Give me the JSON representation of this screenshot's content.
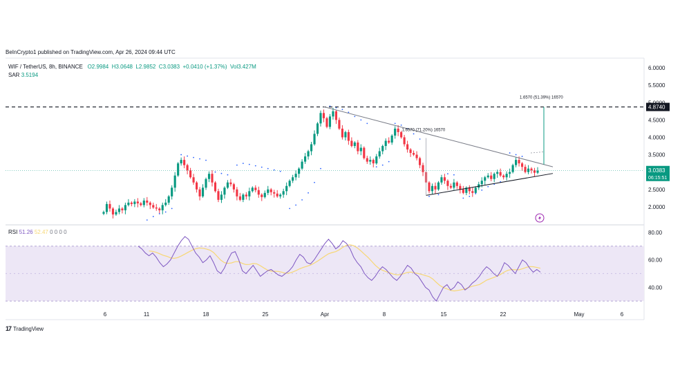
{
  "header": {
    "attribution": "BeInCrypto1 published on TradingView.com, Apr 26, 2024 09:44 UTC"
  },
  "legend": {
    "symbol": "WIF / TetherUS, 8h, BINANCE",
    "open": "O2.9984",
    "high": "H3.0648",
    "low": "L2.9852",
    "close": "C3.0383",
    "change": "+0.0410 (+1.37%)",
    "volume": "Vol3.427M",
    "sar_label": "SAR",
    "sar_value": "3.5194",
    "rsi_label": "RSI",
    "rsi_value": "51.26",
    "rsi_ma_value": "52.47",
    "rsi_extra": "0 0 0 0"
  },
  "footer": {
    "logo_glyph": "17",
    "brand": "TradingView"
  },
  "colors": {
    "up": "#089981",
    "down": "#f23645",
    "rsi_line": "#7e57c2",
    "rsi_ma": "#f7d774",
    "rsi_band": "#ede7f6",
    "trendline": "#787b86",
    "sar": "#2962ff"
  },
  "chart_data": [
    {
      "type": "candlestick",
      "price_axis_ticks": [
        "6.0000",
        "5.5000",
        "5.0000",
        "4.5000",
        "4.0000",
        "3.5000",
        "2.5000",
        "2.0000"
      ],
      "ylim": [
        1.5,
        6.2
      ],
      "resistance_level": 4.874,
      "resistance_label": "4.8740",
      "current_price_label": "3.0383",
      "countdown_label": "06:15:51",
      "measure_labels": [
        {
          "text": "1.6570 (71.20%) 16570",
          "from": 2.33,
          "to": 3.98
        },
        {
          "text": "1.6570 (51.39%) 16570",
          "from": 3.22,
          "to": 4.874
        }
      ],
      "x_tick_labels": [
        "6",
        "11",
        "18",
        "25",
        "Apr",
        "8",
        "15",
        "22",
        "May",
        "6"
      ],
      "closes": [
        1.85,
        2.08,
        1.95,
        1.78,
        1.85,
        1.95,
        1.9,
        2.05,
        2.12,
        2.08,
        2.15,
        2.1,
        2.05,
        2.18,
        2.12,
        2.05,
        1.98,
        1.95,
        1.9,
        2.05,
        2.12,
        2.3,
        2.55,
        2.9,
        3.25,
        3.35,
        3.2,
        3.05,
        2.85,
        2.7,
        2.5,
        2.3,
        2.55,
        2.8,
        2.95,
        2.7,
        2.45,
        2.2,
        2.35,
        2.55,
        2.7,
        2.65,
        2.5,
        2.3,
        2.2,
        2.35,
        2.3,
        2.45,
        2.55,
        2.48,
        2.35,
        2.28,
        2.4,
        2.5,
        2.42,
        2.38,
        2.3,
        2.35,
        2.45,
        2.6,
        2.75,
        2.85,
        2.95,
        3.1,
        3.3,
        3.45,
        3.6,
        3.8,
        4.1,
        4.4,
        4.7,
        4.55,
        4.3,
        4.6,
        4.75,
        4.5,
        4.25,
        4.0,
        4.15,
        3.9,
        3.75,
        3.85,
        3.6,
        3.7,
        3.4,
        3.3,
        3.35,
        3.25,
        3.45,
        3.6,
        3.75,
        3.9,
        3.85,
        4.05,
        4.25,
        4.15,
        4.0,
        3.8,
        3.65,
        3.55,
        3.5,
        3.4,
        3.2,
        3.0,
        2.7,
        2.45,
        2.6,
        2.5,
        2.7,
        2.85,
        2.75,
        2.6,
        2.55,
        2.7,
        2.6,
        2.5,
        2.4,
        2.55,
        2.45,
        2.4,
        2.55,
        2.65,
        2.75,
        2.85,
        2.9,
        2.8,
        2.95,
        3.0,
        2.9,
        2.85,
        2.95,
        3.0,
        3.2,
        3.35,
        3.25,
        3.15,
        3.0,
        3.1,
        3.05,
        2.98,
        3.04
      ],
      "sar": [
        {
          "i": 14,
          "v": 1.62
        },
        {
          "i": 16,
          "v": 1.72
        },
        {
          "i": 18,
          "v": 1.8
        },
        {
          "i": 20,
          "v": 1.85
        },
        {
          "i": 22,
          "v": 1.95
        },
        {
          "i": 25,
          "v": 3.5
        },
        {
          "i": 27,
          "v": 3.46
        },
        {
          "i": 29,
          "v": 3.42
        },
        {
          "i": 31,
          "v": 3.38
        },
        {
          "i": 33,
          "v": 3.34
        },
        {
          "i": 36,
          "v": 3.0
        },
        {
          "i": 38,
          "v": 2.96
        },
        {
          "i": 40,
          "v": 2.92
        },
        {
          "i": 43,
          "v": 3.2
        },
        {
          "i": 45,
          "v": 3.25
        },
        {
          "i": 47,
          "v": 3.22
        },
        {
          "i": 49,
          "v": 3.18
        },
        {
          "i": 51,
          "v": 3.14
        },
        {
          "i": 53,
          "v": 3.1
        },
        {
          "i": 55,
          "v": 3.06
        },
        {
          "i": 57,
          "v": 3.02
        },
        {
          "i": 60,
          "v": 1.95
        },
        {
          "i": 62,
          "v": 2.05
        },
        {
          "i": 64,
          "v": 2.2
        },
        {
          "i": 66,
          "v": 2.4
        },
        {
          "i": 68,
          "v": 2.7
        },
        {
          "i": 70,
          "v": 3.1
        },
        {
          "i": 73,
          "v": 4.9
        },
        {
          "i": 75,
          "v": 4.85
        },
        {
          "i": 77,
          "v": 4.8
        },
        {
          "i": 79,
          "v": 4.72
        },
        {
          "i": 81,
          "v": 4.6
        },
        {
          "i": 83,
          "v": 4.5
        },
        {
          "i": 85,
          "v": 4.4
        },
        {
          "i": 88,
          "v": 3.15
        },
        {
          "i": 90,
          "v": 3.2
        },
        {
          "i": 92,
          "v": 3.3
        },
        {
          "i": 94,
          "v": 4.4
        },
        {
          "i": 96,
          "v": 4.35
        },
        {
          "i": 98,
          "v": 4.25
        },
        {
          "i": 100,
          "v": 4.1
        },
        {
          "i": 102,
          "v": 3.95
        },
        {
          "i": 105,
          "v": 2.3
        },
        {
          "i": 108,
          "v": 2.35
        },
        {
          "i": 111,
          "v": 2.95
        },
        {
          "i": 113,
          "v": 2.92
        },
        {
          "i": 116,
          "v": 2.25
        },
        {
          "i": 118,
          "v": 2.3
        },
        {
          "i": 120,
          "v": 2.38
        },
        {
          "i": 122,
          "v": 2.48
        },
        {
          "i": 124,
          "v": 2.58
        },
        {
          "i": 126,
          "v": 2.65
        },
        {
          "i": 128,
          "v": 2.72
        },
        {
          "i": 131,
          "v": 3.55
        },
        {
          "i": 133,
          "v": 3.5
        },
        {
          "i": 135,
          "v": 3.45
        }
      ]
    },
    {
      "type": "line",
      "name": "RSI",
      "rsi_axis_ticks": [
        "80.00",
        "60.00",
        "40.00"
      ],
      "ylim": [
        25,
        85
      ],
      "bands": [
        30,
        70
      ],
      "rsi": [
        70,
        68,
        65,
        63,
        65,
        62,
        58,
        55,
        57,
        60,
        65,
        70,
        74,
        77,
        75,
        70,
        65,
        62,
        58,
        60,
        63,
        58,
        52,
        50,
        54,
        60,
        65,
        66,
        60,
        52,
        50,
        53,
        56,
        52,
        48,
        50,
        52,
        53,
        51,
        49,
        48,
        50,
        52,
        55,
        60,
        64,
        62,
        58,
        57,
        60,
        64,
        68,
        72,
        75,
        72,
        68,
        70,
        74,
        72,
        68,
        62,
        58,
        55,
        50,
        47,
        45,
        48,
        52,
        55,
        53,
        50,
        47,
        45,
        48,
        52,
        56,
        54,
        50,
        48,
        44,
        40,
        38,
        33,
        30,
        35,
        40,
        42,
        38,
        40,
        44,
        42,
        38,
        40,
        43,
        45,
        48,
        52,
        55,
        53,
        50,
        48,
        52,
        58,
        56,
        53,
        50,
        55,
        60,
        58,
        54,
        51,
        53,
        51
      ]
    }
  ]
}
